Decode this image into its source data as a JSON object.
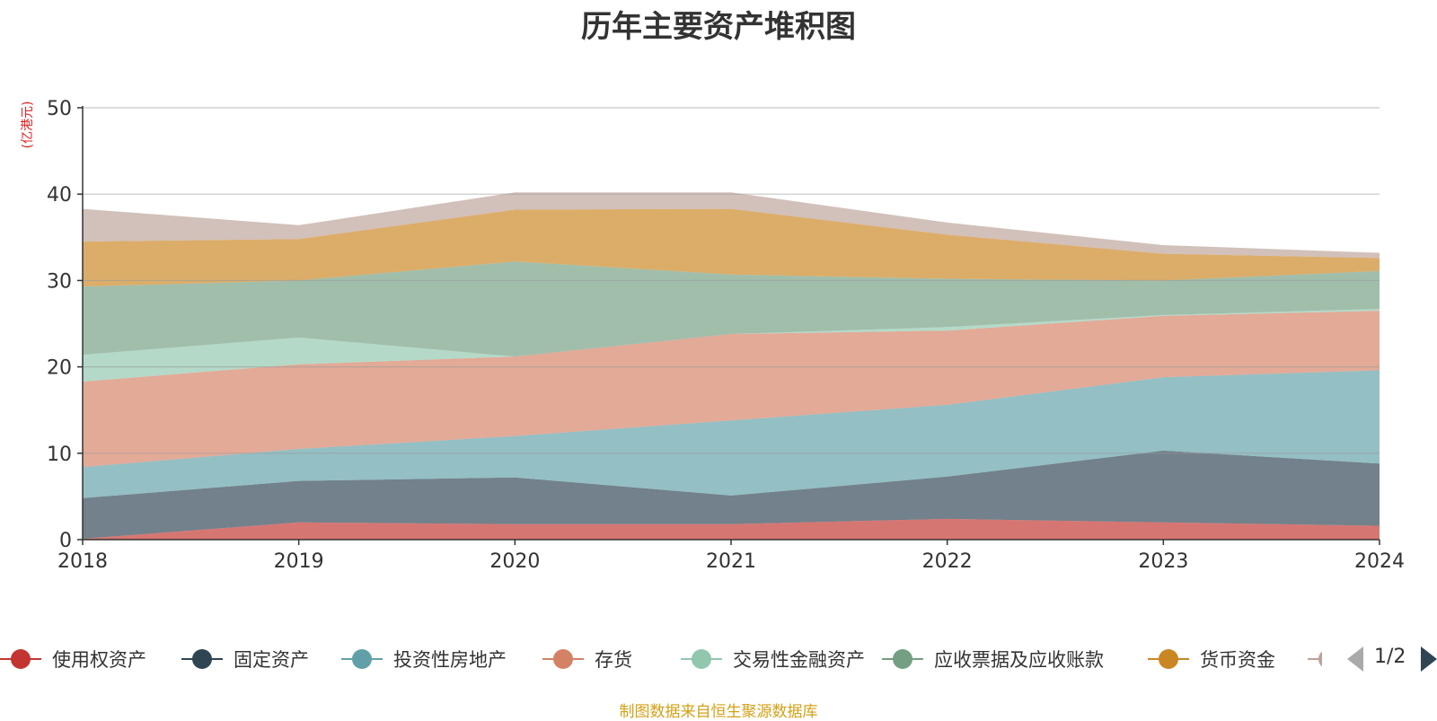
{
  "chart_data": {
    "type": "area",
    "stacked": true,
    "title": "历年主要资产堆积图",
    "unit_label": "(亿港元)",
    "x": [
      "2018",
      "2019",
      "2020",
      "2021",
      "2022",
      "2023",
      "2024"
    ],
    "ylim": [
      0,
      50
    ],
    "yticks": [
      0,
      10,
      20,
      30,
      40,
      50
    ],
    "grid": true,
    "legend_position": "bottom",
    "series": [
      {
        "name": "使用权资产",
        "color": "#c23531",
        "values": [
          0.1,
          2.0,
          1.8,
          1.8,
          2.4,
          2.0,
          1.6
        ]
      },
      {
        "name": "固定资产",
        "color": "#2f4554",
        "values": [
          4.7,
          4.8,
          5.4,
          3.3,
          4.9,
          8.3,
          7.2
        ]
      },
      {
        "name": "投资性房地产",
        "color": "#61a0a8",
        "values": [
          3.6,
          3.7,
          4.8,
          8.7,
          8.3,
          8.5,
          10.8
        ]
      },
      {
        "name": "存货",
        "color": "#d48265",
        "values": [
          9.9,
          9.8,
          9.2,
          10.0,
          8.6,
          7.1,
          6.9
        ]
      },
      {
        "name": "交易性金融资产",
        "color": "#91c7ae",
        "values": [
          3.1,
          3.1,
          0.0,
          0.0,
          0.4,
          0.1,
          0.2
        ]
      },
      {
        "name": "应收票据及应收账款",
        "color": "#749f83",
        "values": [
          7.9,
          6.6,
          11.0,
          6.9,
          5.6,
          4.0,
          4.4
        ]
      },
      {
        "name": "货币资金",
        "color": "#ca8622",
        "values": [
          5.2,
          4.8,
          6.0,
          7.6,
          5.1,
          3.1,
          1.5
        ]
      },
      {
        "name": "",
        "color": "#bda29a",
        "values": [
          3.8,
          1.6,
          2.0,
          1.9,
          1.4,
          1.0,
          0.6
        ]
      }
    ]
  },
  "legend": {
    "visible_items": [
      "使用权资产",
      "固定资产",
      "投资性房地产",
      "存货",
      "交易性金融资产",
      "应收票据及应收账款",
      "货币资金",
      ""
    ],
    "page_text": "1/2"
  },
  "footer": {
    "source": "制图数据来自恒生聚源数据库"
  }
}
